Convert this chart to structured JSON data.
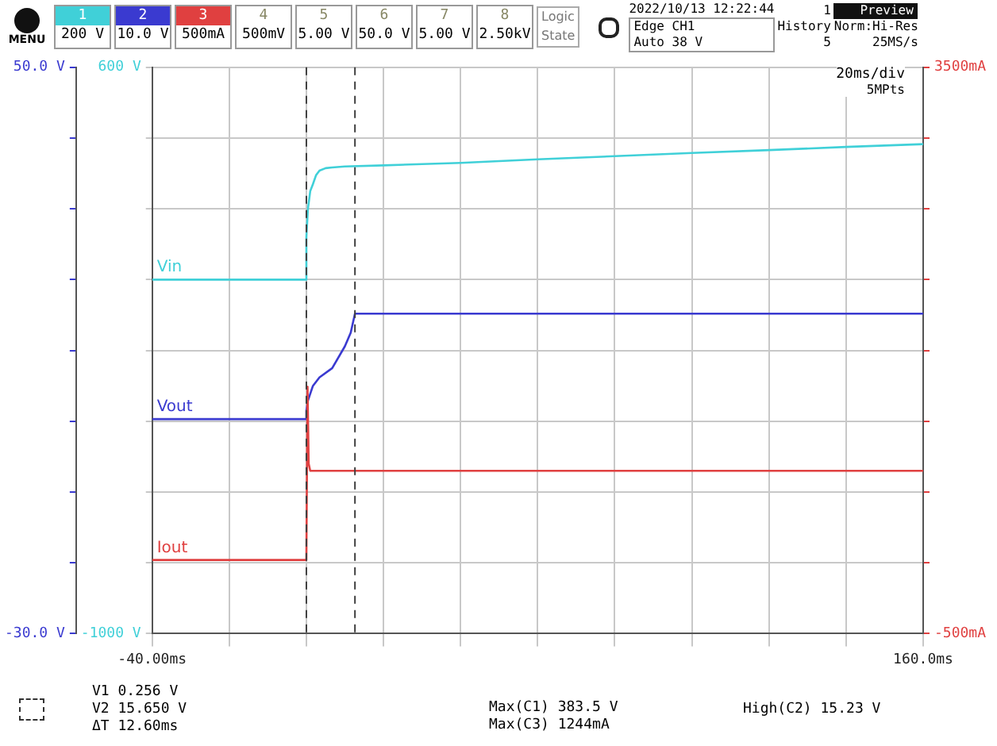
{
  "chart_data": {
    "type": "line",
    "xlim": [
      -40,
      160
    ],
    "xticks": [
      {
        "value": -40,
        "label": "-40.00ms"
      },
      {
        "value": -20,
        "label": null
      },
      {
        "value": 0,
        "label": null
      },
      {
        "value": 20,
        "label": null
      },
      {
        "value": 40,
        "label": null
      },
      {
        "value": 60,
        "label": null
      },
      {
        "value": 80,
        "label": null
      },
      {
        "value": 100,
        "label": null
      },
      {
        "value": 120,
        "label": null
      },
      {
        "value": 140,
        "label": null
      },
      {
        "value": 160,
        "label": "160.0ms"
      }
    ],
    "ylim": [
      -1000,
      600
    ],
    "yticks": [
      {
        "value": -1000,
        "label": "-1000 V"
      },
      {
        "value": -800,
        "label": null
      },
      {
        "value": -600,
        "label": null
      },
      {
        "value": -400,
        "label": null
      },
      {
        "value": -200,
        "label": null
      },
      {
        "value": 0,
        "label": null
      },
      {
        "value": 200,
        "label": null
      },
      {
        "value": 400,
        "label": null
      },
      {
        "value": 600,
        "label": "600 V"
      }
    ],
    "y2lim": [
      -30,
      50
    ],
    "y2ticks": [
      {
        "value": -30,
        "label": "-30.0 V"
      },
      {
        "value": -20,
        "label": null
      },
      {
        "value": -10,
        "label": null
      },
      {
        "value": 0,
        "label": null
      },
      {
        "value": 10,
        "label": null
      },
      {
        "value": 20,
        "label": null
      },
      {
        "value": 30,
        "label": null
      },
      {
        "value": 40,
        "label": null
      },
      {
        "value": 50,
        "label": "50.0 V"
      }
    ],
    "y3lim": [
      -500,
      3500
    ],
    "y3ticks": [
      {
        "value": -500,
        "label": "-500mA"
      },
      {
        "value": 0,
        "label": null
      },
      {
        "value": 500,
        "label": null
      },
      {
        "value": 1000,
        "label": null
      },
      {
        "value": 1500,
        "label": null
      },
      {
        "value": 2000,
        "label": null
      },
      {
        "value": 2500,
        "label": null
      },
      {
        "value": 3000,
        "label": null
      },
      {
        "value": 3500,
        "label": "3500mA"
      }
    ],
    "grid": true,
    "legend": false,
    "marker": "none",
    "line_style": "solid",
    "series": [
      {
        "name": "Iout",
        "color": "#e04040",
        "axis": "y3",
        "x": [
          -40,
          0,
          0.3,
          0.6,
          1,
          160
        ],
        "values": [
          20,
          20,
          1244,
          700,
          650,
          650
        ]
      },
      {
        "name": "Vout",
        "color": "#3a3ad0",
        "axis": "y2",
        "x": [
          -40,
          -0.2,
          0,
          0.4,
          1.7,
          3.4,
          6.7,
          10,
          11.5,
          12.6,
          14,
          40,
          80,
          120,
          160
        ],
        "values": [
          0.3,
          0.3,
          1.5,
          2.9,
          5,
          6.2,
          7.5,
          10.6,
          12.5,
          15.2,
          15.2,
          15.2,
          15.2,
          15.2,
          15.2
        ]
      },
      {
        "name": "Vin",
        "color": "#40d0d8",
        "x": [
          -40,
          -0.2,
          0,
          0.4,
          1,
          1.7,
          2.5,
          3.4,
          5,
          6.7,
          10,
          20,
          40,
          60,
          80,
          100,
          120,
          140,
          160
        ],
        "values": [
          0,
          0,
          120,
          200,
          250,
          270,
          295,
          308,
          315,
          317,
          320,
          323,
          330,
          340,
          349,
          358,
          366,
          375,
          383
        ]
      }
    ],
    "ref_lines": [
      {
        "axis": "x",
        "value": 0,
        "line_style": "dashed",
        "color": "#404040"
      },
      {
        "axis": "x",
        "value": 12.6,
        "line_style": "dashed",
        "color": "#404040"
      }
    ],
    "annotations": [
      "1",
      "200 V",
      "2",
      "10.0 V",
      "3",
      "500mA",
      "4",
      "500mV",
      "5",
      "5.00 V",
      "6",
      "50.0 V",
      "7",
      "5.00 V",
      "8",
      "2.50kV",
      "Logic",
      "State",
      "MENU",
      "2022/10/13 12:22:44",
      "Edge CH1",
      "Auto 38 V",
      "1",
      "History",
      "5",
      "Preview",
      "Norm:Hi-Res",
      "25MS/s",
      "20ms/div",
      "5MPts",
      "V1 0.256 V",
      "V2 15.650 V",
      "ΔT 12.60ms",
      "Max(C1) 383.5 V",
      "Max(C3) 1244mA",
      "High(C2) 15.23 V"
    ]
  }
}
